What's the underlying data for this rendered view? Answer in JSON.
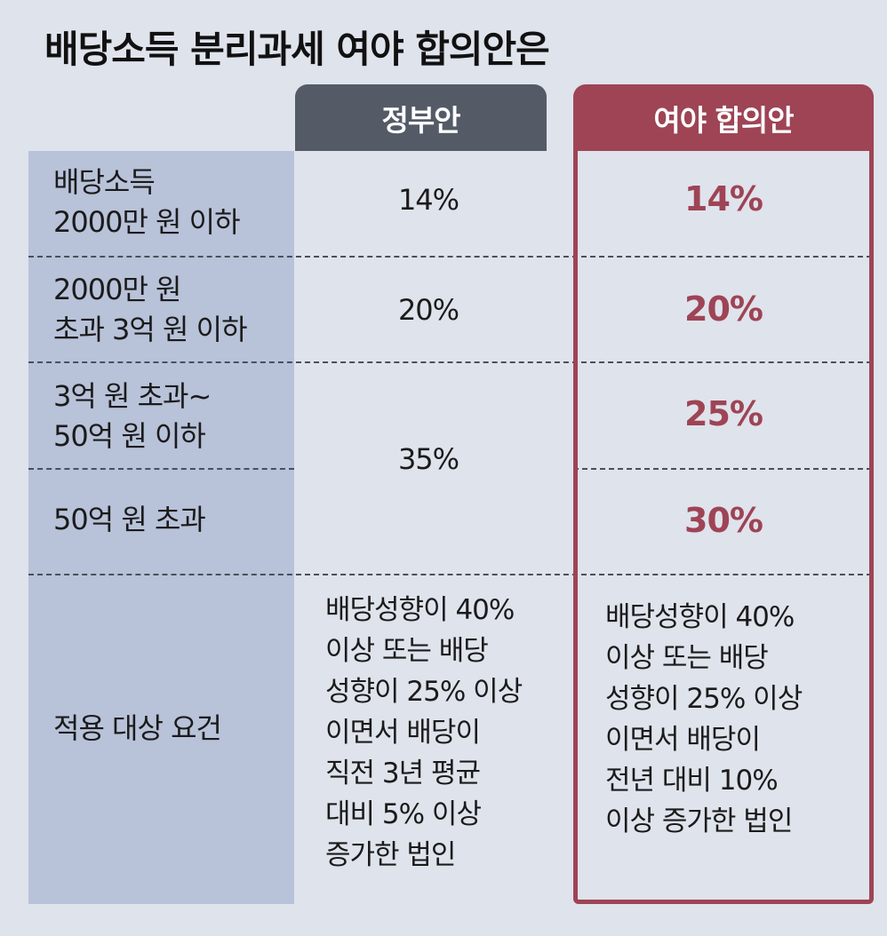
{
  "title": "배당소득 분리과세 여야 합의안은",
  "columns": {
    "government": "정부안",
    "agreement": "여야 합의안"
  },
  "rows": [
    {
      "label_lines": [
        "배당소득",
        "2000만 원 이하"
      ],
      "government": "14%",
      "agreement": "14%"
    },
    {
      "label_lines": [
        "2000만 원",
        "초과 3억 원 이하"
      ],
      "government": "20%",
      "agreement": "20%"
    },
    {
      "label_lines": [
        "3억 원 초과~",
        "50억 원 이하"
      ],
      "government": "35%",
      "agreement": "25%"
    },
    {
      "label_lines": [
        "50억 원 초과"
      ],
      "agreement": "30%"
    }
  ],
  "requirement": {
    "label": "적용 대상 요건",
    "government_lines": [
      "배당성향이 40%",
      "이상 또는 배당",
      "성향이 25% 이상",
      "이면서 배당이",
      "직전 3년 평균",
      "대비 5% 이상",
      "증가한 법인"
    ],
    "agreement_lines": [
      "배당성향이 40%",
      "이상 또는 배당",
      "성향이 25% 이상",
      "이면서 배당이",
      "전년 대비 10%",
      "이상 증가한 법인"
    ]
  },
  "colors": {
    "government_header": "#545b67",
    "agreement_accent": "#9e4455",
    "label_column": "#b8c2d9",
    "background": "#dfe3ec"
  }
}
